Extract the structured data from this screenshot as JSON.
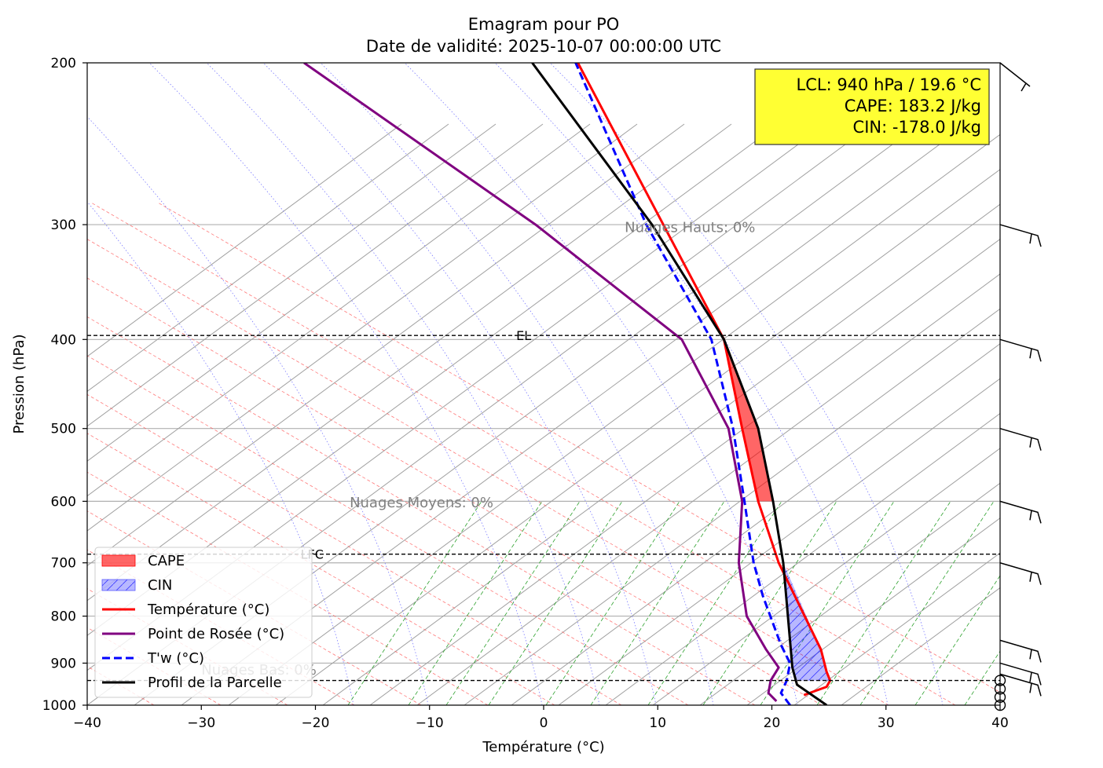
{
  "chart_data": {
    "type": "line",
    "title": "Emagram pour PO",
    "subtitle": "Date de validité: 2025-10-07 00:00:00 UTC",
    "xlabel": "Température (°C)",
    "ylabel": "Pression (hPa)",
    "xlim": [
      -40,
      40
    ],
    "ylim": [
      1000,
      200
    ],
    "y_scale": "log",
    "x_ticks": [
      "−40",
      "−30",
      "−20",
      "−10",
      "0",
      "10",
      "20",
      "30",
      "40"
    ],
    "y_ticks": [
      "200",
      "300",
      "400",
      "500",
      "600",
      "700",
      "800",
      "900",
      "1000"
    ],
    "grid": true,
    "legend_position": "lower-left",
    "series": [
      {
        "name": "Température (°C)",
        "color": "#ff0000",
        "style": "solid",
        "points": [
          [
            22.8,
            975
          ],
          [
            24.8,
            955
          ],
          [
            25.1,
            940
          ],
          [
            24.8,
            920
          ],
          [
            24.3,
            870
          ],
          [
            20.6,
            700
          ],
          [
            18.8,
            600
          ],
          [
            17.4,
            500
          ],
          [
            15.8,
            400
          ],
          [
            3.0,
            200
          ]
        ]
      },
      {
        "name": "Point de Rosée (°C)",
        "color": "#800080",
        "style": "solid",
        "points": [
          [
            20.4,
            990
          ],
          [
            19.7,
            970
          ],
          [
            19.9,
            940
          ],
          [
            20.6,
            910
          ],
          [
            19.5,
            870
          ],
          [
            17.8,
            800
          ],
          [
            17.1,
            700
          ],
          [
            17.4,
            600
          ],
          [
            16.2,
            500
          ],
          [
            12.1,
            400
          ],
          [
            -0.7,
            300
          ],
          [
            -21.0,
            200
          ]
        ]
      },
      {
        "name": "T'w (°C)",
        "color": "#0000ff",
        "style": "dashed",
        "points": [
          [
            21.6,
            1000
          ],
          [
            20.8,
            970
          ],
          [
            21.3,
            940
          ],
          [
            21.6,
            900
          ],
          [
            20.8,
            860
          ],
          [
            19.2,
            760
          ],
          [
            18.4,
            700
          ],
          [
            17.6,
            600
          ],
          [
            16.6,
            500
          ],
          [
            14.7,
            400
          ],
          [
            9.0,
            300
          ],
          [
            2.8,
            200
          ]
        ]
      },
      {
        "name": "Profil de la Parcelle",
        "color": "#000000",
        "style": "solid",
        "points": [
          [
            24.8,
            1000
          ],
          [
            22.2,
            950
          ],
          [
            21.8,
            910
          ],
          [
            21.0,
            700
          ],
          [
            20.1,
            600
          ],
          [
            18.8,
            500
          ],
          [
            15.8,
            400
          ],
          [
            9.5,
            300
          ],
          [
            -1.0,
            200
          ]
        ]
      }
    ],
    "areas": [
      {
        "name": "CAPE",
        "color": "#ff0000",
        "opacity": 0.6,
        "upper": [
          [
            15.8,
            400
          ],
          [
            17.4,
            500
          ],
          [
            18.8,
            600
          ]
        ],
        "lower": [
          [
            15.8,
            400
          ],
          [
            18.8,
            500
          ],
          [
            20.1,
            600
          ]
        ]
      },
      {
        "name": "CIN",
        "color": "#0000ff",
        "opacity": 0.3,
        "upper": [
          [
            21.0,
            700
          ],
          [
            24.3,
            870
          ],
          [
            24.8,
            920
          ],
          [
            25.1,
            940
          ]
        ],
        "lower": [
          [
            21.0,
            700
          ],
          [
            21.8,
            910
          ],
          [
            22.2,
            940
          ]
        ]
      }
    ],
    "levels": [
      {
        "label": "EL",
        "pressure": 396,
        "label_t": -2.4
      },
      {
        "label": "LFC",
        "pressure": 685,
        "label_t": -21.3
      },
      {
        "label": "",
        "pressure": 940,
        "label_t": -30
      }
    ],
    "cloud_labels": [
      {
        "text": "Nuages Hauts: 0%",
        "t": 7.1,
        "p": 302
      },
      {
        "text": "Nuages Moyens: 0%",
        "t": -17.0,
        "p": 602
      },
      {
        "text": "Nuages Bas: 0%",
        "t": -30.0,
        "p": 915
      }
    ],
    "info_box": {
      "lines": [
        "LCL: 940 hPa / 19.6 °C",
        "CAPE: 183.2 J/kg",
        "CIN: -178.0 J/kg"
      ],
      "background": "#ffff33"
    },
    "wind_barbs": [
      {
        "p": 200,
        "kind": "calm-line"
      },
      {
        "p": 300,
        "kind": "barb"
      },
      {
        "p": 400,
        "kind": "barb"
      },
      {
        "p": 500,
        "kind": "barb"
      },
      {
        "p": 600,
        "kind": "barb"
      },
      {
        "p": 700,
        "kind": "barb"
      },
      {
        "p": 850,
        "kind": "barb"
      },
      {
        "p": 900,
        "kind": "barb"
      },
      {
        "p": 925,
        "kind": "barb"
      },
      {
        "p": 940,
        "kind": "calm"
      },
      {
        "p": 960,
        "kind": "calm"
      },
      {
        "p": 980,
        "kind": "calm"
      },
      {
        "p": 1000,
        "kind": "calm"
      }
    ]
  }
}
